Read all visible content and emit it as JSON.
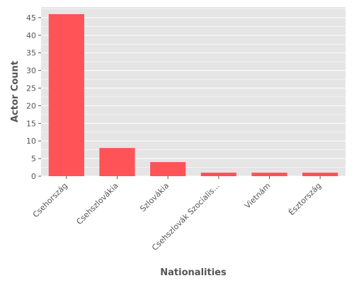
{
  "chart_data": {
    "type": "bar",
    "title": "",
    "xlabel": "Nationalities",
    "ylabel": "Actor Count",
    "categories": [
      "Csehország",
      "Csehszlovákia",
      "Szlovákia",
      "Csehszlovák Szocialis…",
      "Vietnám",
      "Észtország"
    ],
    "values": [
      46,
      8,
      4,
      1,
      1,
      1
    ],
    "ylim": [
      0,
      48
    ],
    "yticks": [
      "0",
      "5",
      "10",
      "15",
      "20",
      "25",
      "30",
      "35",
      "40",
      "45"
    ],
    "grid": true,
    "legend": "none",
    "bar_color": "#ff5357",
    "panel_color": "#e5e5e5",
    "grid_color": "#ffffff"
  }
}
